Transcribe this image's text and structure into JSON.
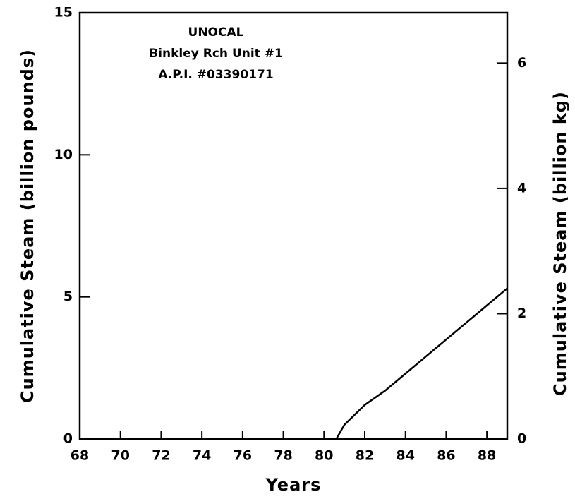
{
  "chart_data": {
    "type": "line",
    "annotations": [
      "UNOCAL",
      "Binkley Rch Unit #1",
      "A.P.I. #03390171"
    ],
    "xlabel": "Years",
    "ylabel": "Cumulative Steam (billion pounds)",
    "y2label": "Cumulative Steam (billion kg)",
    "x": [
      80.6,
      81,
      82,
      83,
      84,
      85,
      86,
      87,
      88,
      89
    ],
    "series": [
      {
        "name": "Cumulative Steam",
        "color": "#000000",
        "values": [
          0,
          0.5,
          1.2,
          1.7,
          2.3,
          2.9,
          3.5,
          4.1,
          4.7,
          5.3
        ]
      }
    ],
    "xlim": [
      68,
      89
    ],
    "xticks": [
      68,
      70,
      72,
      74,
      76,
      78,
      80,
      82,
      84,
      86,
      88
    ],
    "ylim": [
      0,
      15
    ],
    "yticks": [
      0,
      5,
      10,
      15
    ],
    "y2lim": [
      0,
      6.804
    ],
    "y2ticks": [
      0,
      2,
      4,
      6
    ]
  }
}
